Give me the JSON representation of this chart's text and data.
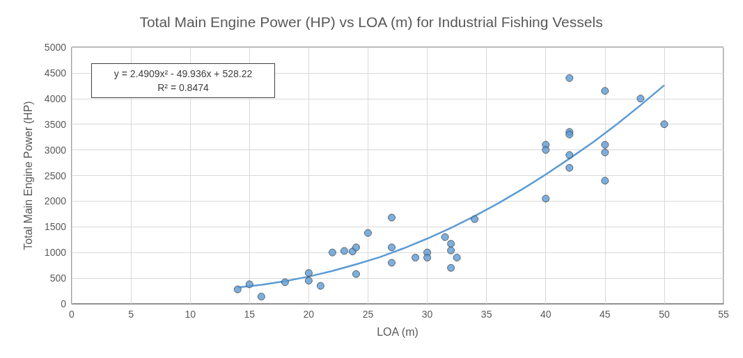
{
  "chart_data": {
    "type": "scatter",
    "title": "Total Main Engine Power (HP) vs LOA (m) for Industrial Fishing Vessels",
    "xlabel": "LOA (m)",
    "ylabel": "Total Main Engine Power (HP)",
    "annotations": [
      "y = 2.4909x² - 49.936x + 528.22",
      "R² = 0.8474"
    ],
    "xlim": [
      0,
      55
    ],
    "xticks": [
      0,
      5,
      10,
      15,
      20,
      25,
      30,
      35,
      40,
      45,
      50,
      55
    ],
    "ylim": [
      0,
      5000
    ],
    "yticks": [
      0,
      500,
      1000,
      1500,
      2000,
      2500,
      3000,
      3500,
      4000,
      4500,
      5000
    ],
    "grid": true,
    "marker": "circle",
    "series": [
      {
        "color": "#5b9bd5",
        "x": [
          14,
          15,
          16,
          18,
          20,
          20,
          21,
          22,
          23,
          23.7,
          24,
          24,
          25,
          27,
          27,
          27,
          29,
          30,
          30,
          31.5,
          32,
          32,
          32,
          32.5,
          34,
          40,
          40,
          40,
          42,
          42,
          42,
          42,
          42,
          45,
          45,
          45,
          45,
          48,
          50
        ],
        "values": [
          280,
          380,
          140,
          420,
          600,
          450,
          350,
          1000,
          1030,
          1020,
          1100,
          580,
          1380,
          1680,
          1100,
          800,
          900,
          1000,
          900,
          1300,
          1170,
          1040,
          700,
          900,
          1650,
          3100,
          3000,
          2050,
          4400,
          3350,
          3300,
          2900,
          2650,
          4150,
          3100,
          2950,
          2400,
          4000,
          3500
        ]
      },
      {
        "type": "line",
        "color": "#5b9bd5",
        "marker": "none",
        "x": [
          14,
          16,
          18,
          20,
          22,
          24,
          26,
          28,
          30,
          32,
          34,
          36,
          38,
          40,
          42,
          44,
          46,
          48,
          50
        ],
        "values": [
          320,
          370,
          440,
          530,
          640,
          770,
          910,
          1080,
          1270,
          1480,
          1710,
          1960,
          2230,
          2520,
          2830,
          3150,
          3500,
          3870,
          4260
        ]
      }
    ]
  }
}
